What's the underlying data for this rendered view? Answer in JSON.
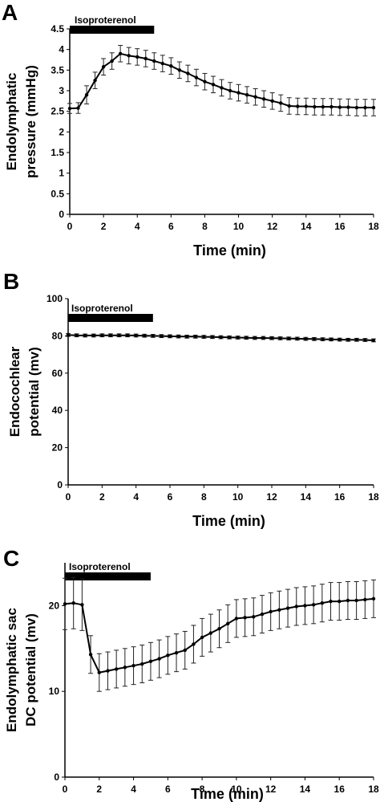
{
  "chart_data": [
    {
      "panel": "A",
      "type": "line",
      "xlabel": "Time (min)",
      "ylabel": [
        "Endolymphatic",
        "pressure (mmHg)"
      ],
      "xlim": [
        0,
        18
      ],
      "ylim": [
        0,
        4.5
      ],
      "xticks": [
        "0",
        "2",
        "4",
        "6",
        "8",
        "10",
        "12",
        "14",
        "16",
        "18"
      ],
      "yticks": [
        "0",
        "0.5",
        "1",
        "1.5",
        "2",
        "2.5",
        "3",
        "3.5",
        "4",
        "4.5"
      ],
      "drug_bar": {
        "label": "Isoproterenol",
        "start": 0,
        "end": 5
      },
      "x": [
        0,
        0.5,
        1,
        1.5,
        2,
        2.5,
        3,
        3.5,
        4,
        4.5,
        5,
        5.5,
        6,
        6.5,
        7,
        7.5,
        8,
        8.5,
        9,
        9.5,
        10,
        10.5,
        11,
        11.5,
        12,
        12.5,
        13,
        13.5,
        14,
        14.5,
        15,
        15.5,
        16,
        16.5,
        17,
        17.5,
        18
      ],
      "y": [
        2.57,
        2.58,
        2.9,
        3.25,
        3.58,
        3.72,
        3.9,
        3.85,
        3.82,
        3.78,
        3.72,
        3.66,
        3.6,
        3.5,
        3.42,
        3.32,
        3.22,
        3.15,
        3.07,
        3.0,
        2.95,
        2.9,
        2.85,
        2.8,
        2.75,
        2.7,
        2.63,
        2.62,
        2.62,
        2.61,
        2.61,
        2.61,
        2.6,
        2.6,
        2.59,
        2.59,
        2.59
      ],
      "err": [
        0.12,
        0.13,
        0.22,
        0.2,
        0.2,
        0.2,
        0.2,
        0.2,
        0.2,
        0.2,
        0.2,
        0.2,
        0.2,
        0.2,
        0.2,
        0.2,
        0.2,
        0.2,
        0.2,
        0.2,
        0.2,
        0.2,
        0.2,
        0.2,
        0.2,
        0.2,
        0.2,
        0.2,
        0.2,
        0.2,
        0.2,
        0.2,
        0.2,
        0.2,
        0.2,
        0.2,
        0.2
      ]
    },
    {
      "panel": "B",
      "type": "line",
      "xlabel": "Time (min)",
      "ylabel": [
        "Endocochlear",
        "potential (mv)"
      ],
      "xlim": [
        0,
        18
      ],
      "ylim": [
        0,
        100
      ],
      "xticks": [
        "0",
        "2",
        "4",
        "6",
        "8",
        "10",
        "12",
        "14",
        "16",
        "18"
      ],
      "yticks": [
        "0",
        "20",
        "40",
        "60",
        "80",
        "100"
      ],
      "drug_bar": {
        "label": "Isoproterenol",
        "start": 0,
        "end": 5
      },
      "x": [
        0,
        0.5,
        1,
        1.5,
        2,
        2.5,
        3,
        3.5,
        4,
        4.5,
        5,
        5.5,
        6,
        6.5,
        7,
        7.5,
        8,
        8.5,
        9,
        9.5,
        10,
        10.5,
        11,
        11.5,
        12,
        12.5,
        13,
        13.5,
        14,
        14.5,
        15,
        15.5,
        16,
        16.5,
        17,
        17.5,
        18
      ],
      "y": [
        80.5,
        80.3,
        80.2,
        80.2,
        80.3,
        80.3,
        80.3,
        80.3,
        80.2,
        80.1,
        80.0,
        79.9,
        79.8,
        79.7,
        79.6,
        79.6,
        79.5,
        79.4,
        79.3,
        79.2,
        79.1,
        79.0,
        78.9,
        78.9,
        78.8,
        78.7,
        78.6,
        78.5,
        78.4,
        78.3,
        78.2,
        78.1,
        78.0,
        77.9,
        77.9,
        77.8,
        77.6
      ],
      "err": [
        0.8,
        0.8,
        0.8,
        0.8,
        0.8,
        0.8,
        0.8,
        0.8,
        0.8,
        0.8,
        0.8,
        0.8,
        0.8,
        0.8,
        0.8,
        0.8,
        0.8,
        0.8,
        0.8,
        0.8,
        0.8,
        0.8,
        0.8,
        0.8,
        0.8,
        0.8,
        0.8,
        0.8,
        0.8,
        0.8,
        0.8,
        0.8,
        0.8,
        0.8,
        0.8,
        0.8,
        0.8
      ]
    },
    {
      "panel": "C",
      "type": "line",
      "xlabel": "Time (min)",
      "ylabel": [
        "Endolymphatic sac",
        "DC potential (mv)"
      ],
      "xlim": [
        0,
        18
      ],
      "ylim": [
        0,
        25
      ],
      "xticks": [
        "0",
        "2",
        "4",
        "6",
        "8",
        "10",
        "12",
        "14",
        "16",
        "18"
      ],
      "yticks": [
        "0",
        "10",
        "20"
      ],
      "drug_bar": {
        "label": "Isoproterenol",
        "start": 0,
        "end": 5
      },
      "x": [
        0,
        0.5,
        1,
        1.5,
        2,
        2.5,
        3,
        3.5,
        4,
        4.5,
        5,
        5.5,
        6,
        6.5,
        7,
        7.5,
        8,
        8.5,
        9,
        9.5,
        10,
        10.5,
        11,
        11.5,
        12,
        12.5,
        13,
        13.5,
        14,
        14.5,
        15,
        15.5,
        16,
        16.5,
        17,
        17.5,
        18
      ],
      "y": [
        20.2,
        20.3,
        20.1,
        14.3,
        12.2,
        12.4,
        12.6,
        12.8,
        13.0,
        13.2,
        13.5,
        13.8,
        14.2,
        14.5,
        14.8,
        15.5,
        16.3,
        16.8,
        17.3,
        17.9,
        18.5,
        18.6,
        18.7,
        19.0,
        19.3,
        19.5,
        19.7,
        19.9,
        20.0,
        20.1,
        20.3,
        20.5,
        20.5,
        20.6,
        20.6,
        20.7,
        20.8
      ],
      "err": [
        3.0,
        3.0,
        3.0,
        2.2,
        2.2,
        2.2,
        2.2,
        2.2,
        2.2,
        2.2,
        2.2,
        2.2,
        2.2,
        2.2,
        2.2,
        2.2,
        2.2,
        2.2,
        2.2,
        2.2,
        2.2,
        2.2,
        2.2,
        2.2,
        2.2,
        2.2,
        2.2,
        2.2,
        2.2,
        2.2,
        2.2,
        2.2,
        2.2,
        2.2,
        2.2,
        2.2,
        2.2
      ]
    }
  ]
}
